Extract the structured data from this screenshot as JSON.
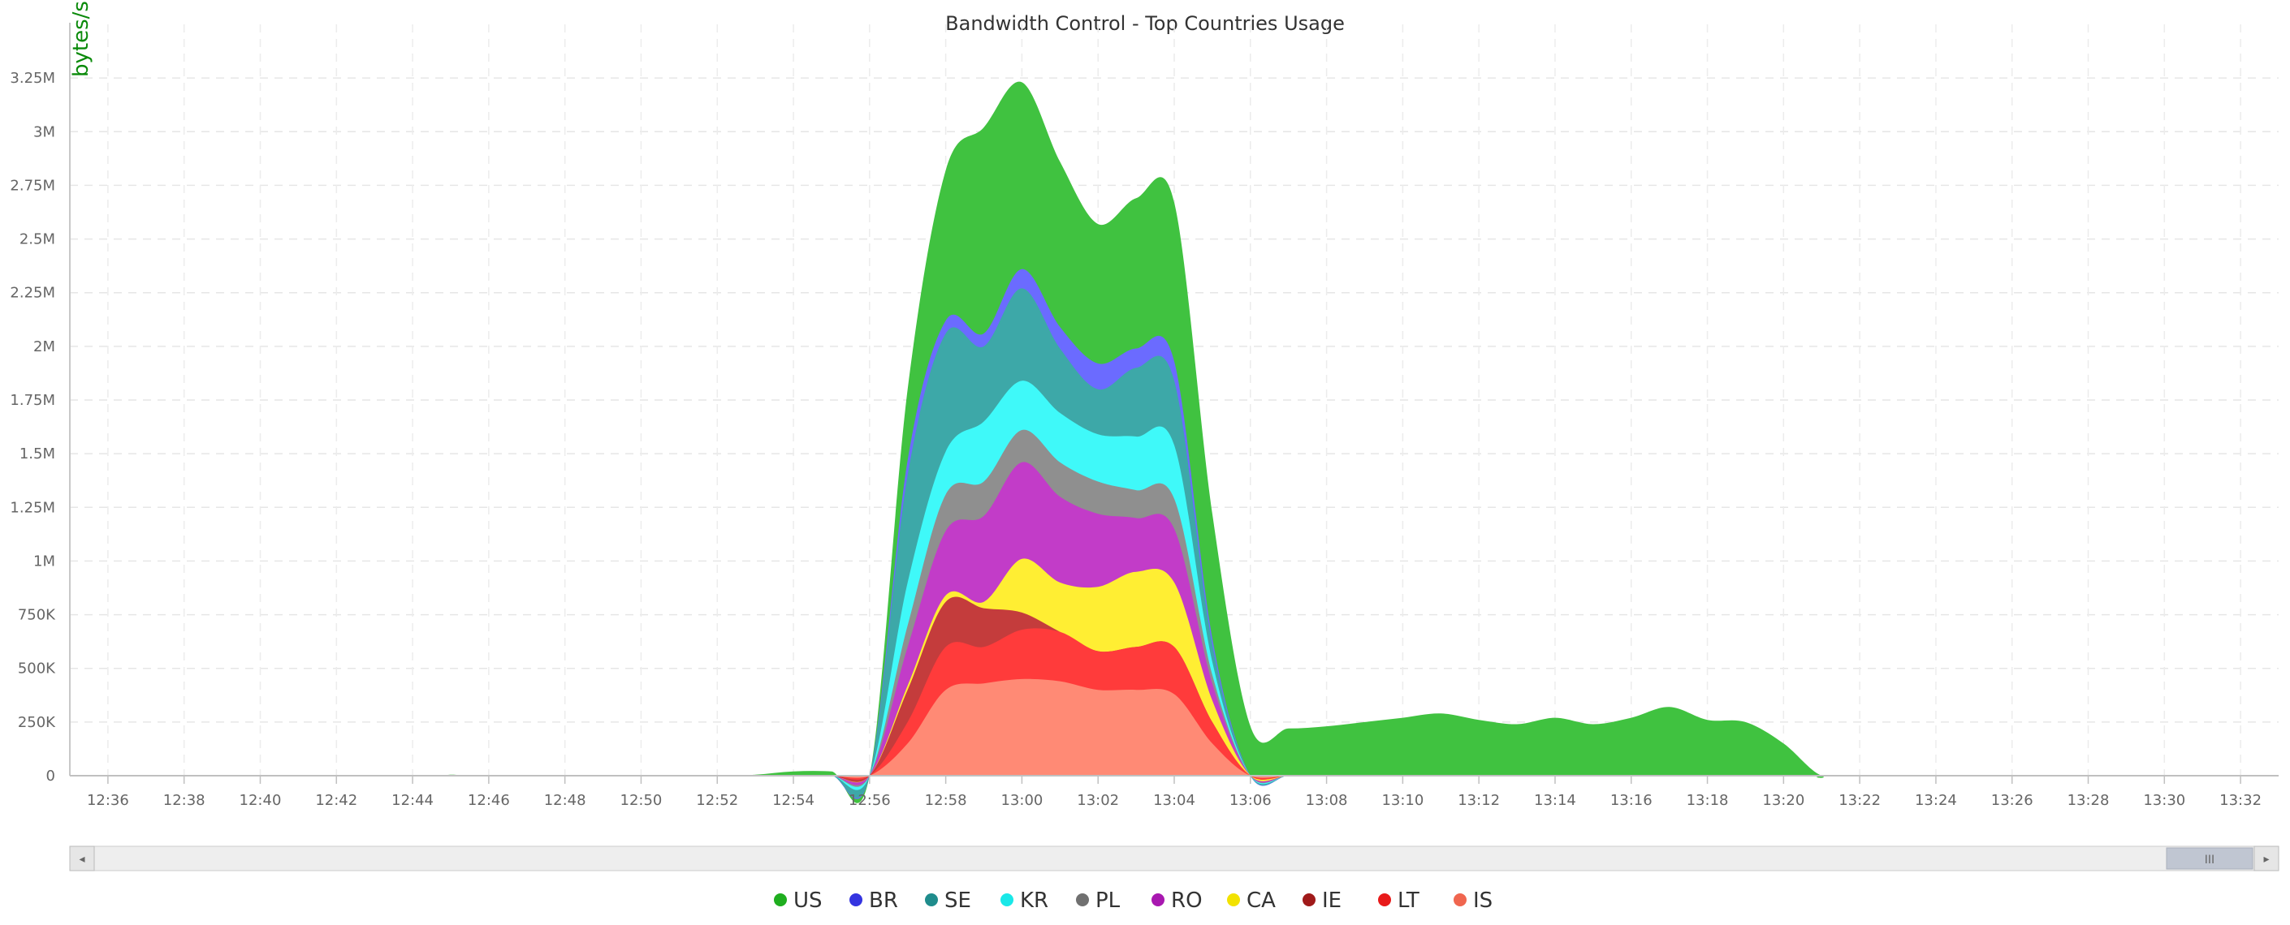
{
  "chart_data": {
    "type": "area",
    "stacked": true,
    "title": "Bandwidth Control - Top Countries Usage",
    "ylabel": "bytes/s",
    "ylim": [
      0,
      3500000
    ],
    "x_ticks": [
      "12:36",
      "12:38",
      "12:40",
      "12:42",
      "12:44",
      "12:46",
      "12:48",
      "12:50",
      "12:52",
      "12:54",
      "12:56",
      "12:58",
      "13:00",
      "13:02",
      "13:04",
      "13:06",
      "13:08",
      "13:10",
      "13:12",
      "13:14",
      "13:16",
      "13:18",
      "13:20",
      "13:22",
      "13:24",
      "13:26",
      "13:28",
      "13:30",
      "13:32"
    ],
    "y_ticks": [
      {
        "value": 0,
        "label": "0"
      },
      {
        "value": 250000,
        "label": "250K"
      },
      {
        "value": 500000,
        "label": "500K"
      },
      {
        "value": 750000,
        "label": "750K"
      },
      {
        "value": 1000000,
        "label": "1M"
      },
      {
        "value": 1250000,
        "label": "1.25M"
      },
      {
        "value": 1500000,
        "label": "1.5M"
      },
      {
        "value": 1750000,
        "label": "1.75M"
      },
      {
        "value": 2000000,
        "label": "2M"
      },
      {
        "value": 2250000,
        "label": "2.25M"
      },
      {
        "value": 2500000,
        "label": "2.5M"
      },
      {
        "value": 2750000,
        "label": "2.75M"
      },
      {
        "value": 3000000,
        "label": "3M"
      },
      {
        "value": 3250000,
        "label": "3.25M"
      }
    ],
    "grid": true,
    "legend_position": "bottom-center",
    "x": [
      "12:35",
      "12:44",
      "12:45",
      "12:46",
      "12:52",
      "12:53",
      "12:54",
      "12:55",
      "12:56",
      "12:57",
      "12:58",
      "12:59",
      "13:00",
      "13:01",
      "13:02",
      "13:03",
      "13:04",
      "13:05",
      "13:06",
      "13:07",
      "13:08",
      "13:09",
      "13:10",
      "13:11",
      "13:12",
      "13:13",
      "13:14",
      "13:15",
      "13:16",
      "13:17",
      "13:18",
      "13:19",
      "13:20",
      "13:21",
      "13:22",
      "13:33"
    ],
    "series": [
      {
        "name": "IS",
        "color": "#ff8a75",
        "values": [
          0,
          0,
          0,
          0,
          0,
          0,
          0,
          0,
          0,
          150000,
          400000,
          430000,
          450000,
          440000,
          400000,
          400000,
          380000,
          150000,
          0,
          0,
          0,
          0,
          0,
          0,
          0,
          0,
          0,
          0,
          0,
          0,
          0,
          0,
          0,
          0,
          0,
          0
        ]
      },
      {
        "name": "LT",
        "color": "#ff3b3b",
        "values": [
          0,
          0,
          0,
          0,
          0,
          0,
          0,
          0,
          0,
          100000,
          200000,
          170000,
          230000,
          230000,
          180000,
          200000,
          220000,
          100000,
          0,
          0,
          0,
          0,
          0,
          0,
          0,
          0,
          0,
          0,
          0,
          0,
          0,
          0,
          0,
          0,
          0,
          0
        ]
      },
      {
        "name": "IE",
        "color": "#c43c3c",
        "values": [
          0,
          0,
          0,
          0,
          0,
          0,
          0,
          0,
          0,
          150000,
          210000,
          180000,
          80000,
          0,
          0,
          0,
          0,
          0,
          0,
          0,
          0,
          0,
          0,
          0,
          0,
          0,
          0,
          0,
          0,
          0,
          0,
          0,
          0,
          0,
          0,
          0
        ]
      },
      {
        "name": "CA",
        "color": "#ffee33",
        "values": [
          0,
          0,
          0,
          0,
          0,
          0,
          0,
          0,
          0,
          20000,
          30000,
          30000,
          250000,
          230000,
          300000,
          350000,
          300000,
          100000,
          0,
          0,
          0,
          0,
          0,
          0,
          0,
          0,
          0,
          0,
          0,
          0,
          0,
          0,
          0,
          0,
          0,
          0
        ]
      },
      {
        "name": "RO",
        "color": "#c23cc8",
        "values": [
          0,
          0,
          0,
          0,
          0,
          0,
          0,
          0,
          0,
          180000,
          300000,
          400000,
          450000,
          400000,
          340000,
          250000,
          250000,
          80000,
          0,
          0,
          0,
          0,
          0,
          0,
          0,
          0,
          0,
          0,
          0,
          0,
          0,
          0,
          0,
          0,
          0,
          0
        ]
      },
      {
        "name": "PL",
        "color": "#8f8f8f",
        "values": [
          0,
          0,
          0,
          0,
          0,
          0,
          0,
          0,
          0,
          100000,
          170000,
          160000,
          150000,
          160000,
          150000,
          130000,
          140000,
          40000,
          0,
          0,
          0,
          0,
          0,
          0,
          0,
          0,
          0,
          0,
          0,
          0,
          0,
          0,
          0,
          0,
          0,
          0
        ]
      },
      {
        "name": "KR",
        "color": "#3ff9f9",
        "values": [
          0,
          0,
          0,
          0,
          0,
          0,
          0,
          0,
          0,
          200000,
          200000,
          280000,
          230000,
          230000,
          220000,
          250000,
          250000,
          60000,
          0,
          0,
          0,
          0,
          0,
          0,
          0,
          0,
          0,
          0,
          0,
          0,
          0,
          0,
          0,
          0,
          0,
          0
        ]
      },
      {
        "name": "SE",
        "color": "#3da8a8",
        "values": [
          0,
          0,
          0,
          0,
          0,
          0,
          0,
          0,
          0,
          500000,
          550000,
          350000,
          430000,
          300000,
          210000,
          320000,
          300000,
          80000,
          0,
          0,
          0,
          0,
          0,
          0,
          0,
          0,
          0,
          0,
          0,
          0,
          0,
          0,
          0,
          0,
          0,
          0
        ]
      },
      {
        "name": "BR",
        "color": "#6b6bff",
        "values": [
          0,
          0,
          0,
          0,
          0,
          0,
          0,
          0,
          0,
          70000,
          60000,
          60000,
          90000,
          100000,
          120000,
          90000,
          90000,
          30000,
          0,
          0,
          0,
          0,
          0,
          0,
          0,
          0,
          0,
          0,
          0,
          0,
          0,
          0,
          0,
          0,
          0,
          0
        ]
      },
      {
        "name": "US",
        "color": "#40c240",
        "values": [
          0,
          0,
          5000,
          0,
          0,
          5000,
          20000,
          20000,
          0,
          330000,
          700000,
          960000,
          870000,
          770000,
          650000,
          700000,
          740000,
          580000,
          230000,
          220000,
          230000,
          250000,
          270000,
          290000,
          260000,
          240000,
          270000,
          240000,
          270000,
          320000,
          260000,
          250000,
          150000,
          0,
          3000,
          0
        ]
      }
    ],
    "legend": [
      {
        "name": "US",
        "color": "#1fae1f"
      },
      {
        "name": "BR",
        "color": "#3434e0"
      },
      {
        "name": "SE",
        "color": "#1f8c8c"
      },
      {
        "name": "KR",
        "color": "#1ae8e8"
      },
      {
        "name": "PL",
        "color": "#707070"
      },
      {
        "name": "RO",
        "color": "#a818b0"
      },
      {
        "name": "CA",
        "color": "#f2e200"
      },
      {
        "name": "IE",
        "color": "#a01a1a"
      },
      {
        "name": "LT",
        "color": "#e81a1a"
      },
      {
        "name": "IS",
        "color": "#f0664f"
      }
    ]
  },
  "scrollbar": {
    "left_arrow": "◂",
    "right_arrow": "▸",
    "grip": "III"
  }
}
